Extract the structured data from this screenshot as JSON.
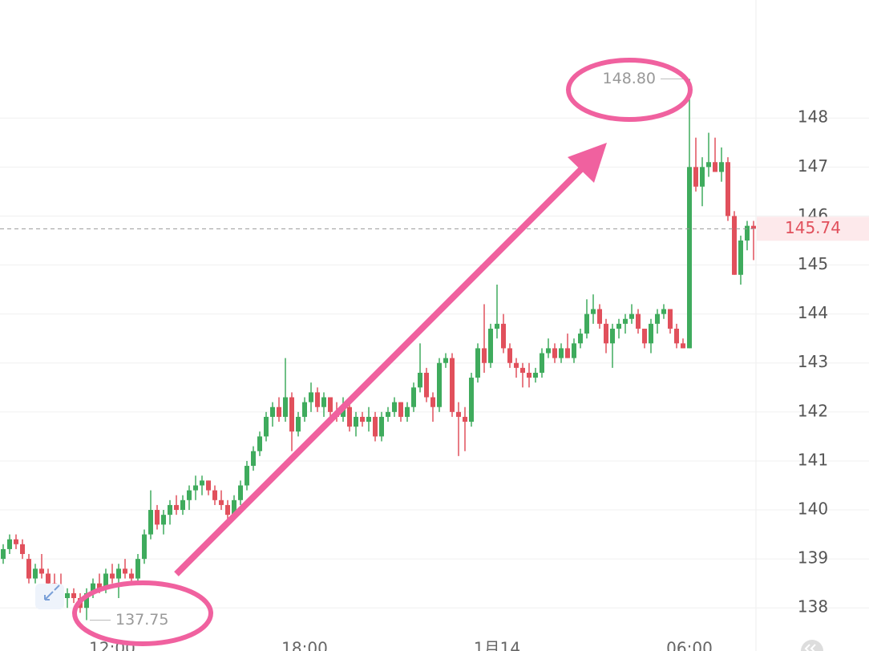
{
  "chart_data": {
    "type": "candlestick",
    "categories": [
      null,
      null,
      null,
      null,
      null,
      null,
      null,
      null,
      null,
      null,
      null,
      null,
      null,
      null,
      null,
      null,
      null,
      "12:00",
      null,
      null,
      null,
      null,
      null,
      null,
      null,
      null,
      null,
      null,
      null,
      null,
      null,
      null,
      null,
      null,
      null,
      null,
      null,
      null,
      null,
      null,
      null,
      null,
      null,
      null,
      null,
      null,
      null,
      "18:00",
      null,
      null,
      null,
      null,
      null,
      null,
      null,
      null,
      null,
      null,
      null,
      null,
      null,
      null,
      null,
      null,
      null,
      null,
      null,
      null,
      null,
      null,
      null,
      null,
      null,
      null,
      null,
      null,
      null,
      "1月14",
      null,
      null,
      null,
      null,
      null,
      null,
      null,
      null,
      null,
      null,
      null,
      null,
      null,
      null,
      null,
      null,
      null,
      null,
      null,
      null,
      null,
      null,
      null,
      null,
      null,
      null,
      null,
      null,
      null,
      "06:00",
      null,
      null,
      null,
      null,
      null,
      null,
      null,
      null,
      null,
      null
    ],
    "open": [
      139.0,
      139.2,
      139.4,
      139.3,
      139.0,
      138.6,
      138.8,
      138.7,
      138.5,
      138.3,
      138.2,
      138.3,
      138.2,
      138.0,
      138.3,
      138.5,
      138.4,
      138.7,
      138.6,
      138.8,
      138.7,
      138.6,
      139.0,
      139.5,
      140.0,
      139.7,
      139.9,
      140.1,
      140.0,
      140.2,
      140.4,
      140.5,
      140.6,
      140.4,
      140.2,
      140.1,
      139.9,
      140.2,
      140.5,
      140.9,
      141.2,
      141.5,
      141.9,
      142.1,
      141.9,
      142.3,
      141.6,
      141.9,
      142.2,
      142.4,
      142.1,
      142.3,
      142.0,
      141.9,
      142.1,
      141.7,
      141.9,
      141.8,
      141.9,
      141.5,
      141.9,
      142.0,
      142.2,
      141.9,
      142.1,
      142.5,
      142.8,
      142.3,
      142.1,
      143.0,
      143.1,
      142.0,
      141.9,
      141.8,
      142.7,
      143.3,
      143.0,
      143.7,
      143.8,
      143.3,
      143.0,
      142.9,
      142.8,
      142.7,
      142.8,
      143.2,
      143.3,
      143.1,
      143.3,
      143.1,
      143.4,
      143.6,
      144.0,
      144.1,
      143.8,
      143.4,
      143.7,
      143.8,
      143.9,
      144.0,
      143.7,
      143.4,
      143.8,
      144.0,
      144.1,
      143.7,
      143.4,
      143.3,
      147.0,
      146.6,
      147.0,
      147.1,
      146.9,
      147.1,
      146.0,
      144.8,
      145.5,
      145.8
    ],
    "high": [
      139.3,
      139.5,
      139.5,
      139.4,
      139.1,
      138.9,
      139.1,
      138.8,
      138.7,
      138.7,
      138.4,
      138.4,
      138.3,
      138.4,
      138.6,
      138.7,
      138.8,
      138.9,
      138.9,
      139.0,
      138.8,
      139.1,
      139.6,
      140.4,
      140.1,
      140.0,
      140.2,
      140.3,
      140.3,
      140.5,
      140.7,
      140.7,
      140.6,
      140.5,
      140.4,
      140.2,
      140.3,
      140.6,
      141.0,
      141.3,
      141.6,
      142.0,
      142.2,
      142.3,
      143.1,
      142.4,
      142.0,
      142.3,
      142.6,
      142.5,
      142.4,
      142.3,
      142.2,
      142.3,
      142.2,
      142.0,
      142.0,
      142.1,
      142.0,
      142.0,
      142.1,
      142.3,
      142.2,
      142.2,
      142.6,
      143.4,
      142.9,
      142.4,
      143.1,
      143.2,
      143.2,
      142.2,
      142.1,
      142.8,
      143.4,
      144.2,
      143.8,
      144.6,
      144.0,
      143.4,
      143.1,
      143.0,
      143.0,
      142.9,
      143.3,
      143.5,
      143.4,
      143.4,
      143.6,
      143.5,
      143.7,
      144.3,
      144.4,
      144.2,
      143.9,
      143.8,
      143.9,
      144.0,
      144.2,
      144.1,
      143.7,
      143.9,
      144.1,
      144.2,
      144.1,
      143.8,
      143.5,
      148.8,
      147.6,
      147.2,
      147.7,
      147.6,
      147.4,
      147.2,
      146.1,
      145.6,
      145.9,
      145.9
    ],
    "low": [
      138.9,
      139.1,
      139.2,
      139.0,
      138.5,
      138.5,
      138.6,
      138.3,
      138.2,
      138.0,
      138.0,
      138.1,
      137.9,
      137.75,
      138.2,
      138.3,
      138.3,
      138.5,
      138.2,
      138.6,
      138.5,
      138.5,
      138.9,
      139.4,
      139.6,
      139.5,
      139.7,
      139.9,
      139.9,
      140.0,
      140.2,
      140.3,
      140.3,
      140.1,
      140.0,
      139.8,
      139.8,
      140.1,
      140.4,
      140.8,
      141.1,
      141.4,
      141.7,
      141.8,
      141.8,
      141.2,
      141.5,
      141.8,
      142.0,
      142.0,
      141.9,
      141.9,
      141.8,
      141.8,
      141.6,
      141.5,
      141.7,
      141.6,
      141.4,
      141.4,
      141.8,
      141.9,
      141.8,
      141.8,
      142.0,
      142.4,
      142.2,
      141.8,
      142.0,
      142.9,
      141.9,
      141.1,
      141.2,
      141.7,
      142.6,
      142.8,
      142.9,
      143.5,
      143.2,
      142.9,
      142.7,
      142.5,
      142.5,
      142.6,
      142.7,
      143.1,
      143.0,
      143.0,
      143.1,
      143.0,
      143.3,
      143.5,
      143.8,
      143.7,
      143.2,
      142.9,
      143.5,
      143.6,
      143.8,
      143.6,
      143.3,
      143.2,
      143.6,
      143.9,
      143.6,
      143.3,
      143.3,
      143.3,
      146.5,
      146.2,
      146.8,
      146.9,
      146.7,
      145.9,
      144.8,
      144.6,
      145.3,
      145.1
    ],
    "close": [
      139.2,
      139.4,
      139.3,
      139.1,
      138.6,
      138.8,
      138.7,
      138.5,
      138.3,
      138.2,
      138.3,
      138.2,
      138.0,
      138.3,
      138.5,
      138.4,
      138.7,
      138.6,
      138.8,
      138.7,
      138.6,
      139.0,
      139.5,
      140.0,
      139.7,
      139.9,
      140.1,
      140.0,
      140.2,
      140.4,
      140.5,
      140.6,
      140.4,
      140.2,
      140.1,
      139.9,
      140.2,
      140.5,
      140.9,
      141.2,
      141.5,
      141.9,
      142.1,
      141.9,
      142.3,
      141.6,
      141.9,
      142.2,
      142.4,
      142.1,
      142.3,
      142.0,
      141.9,
      142.1,
      141.7,
      141.9,
      141.8,
      141.9,
      141.5,
      141.9,
      142.0,
      142.2,
      141.9,
      142.1,
      142.5,
      142.8,
      142.3,
      142.1,
      143.0,
      143.1,
      142.0,
      141.9,
      141.8,
      142.7,
      143.3,
      143.0,
      143.7,
      143.8,
      143.3,
      143.0,
      142.9,
      142.8,
      142.7,
      142.8,
      143.2,
      143.3,
      143.1,
      143.3,
      143.1,
      143.4,
      143.6,
      144.0,
      144.1,
      143.8,
      143.4,
      143.7,
      143.8,
      143.9,
      144.0,
      143.7,
      143.4,
      143.8,
      144.0,
      144.1,
      143.7,
      143.4,
      143.3,
      147.0,
      146.6,
      147.0,
      147.1,
      146.9,
      147.1,
      146.0,
      144.8,
      145.5,
      145.8,
      145.74
    ],
    "up_color": "#3fab5d",
    "down_color": "#e1505c",
    "ylim": [
      137.12,
      150.41
    ],
    "yticks": [
      138,
      139,
      140,
      141,
      142,
      143,
      144,
      145,
      146,
      147,
      148
    ],
    "grid": true,
    "max_label": {
      "value": 148.8,
      "label": "148.80"
    },
    "min_label": 137.75,
    "last_price": 145.74
  }
}
